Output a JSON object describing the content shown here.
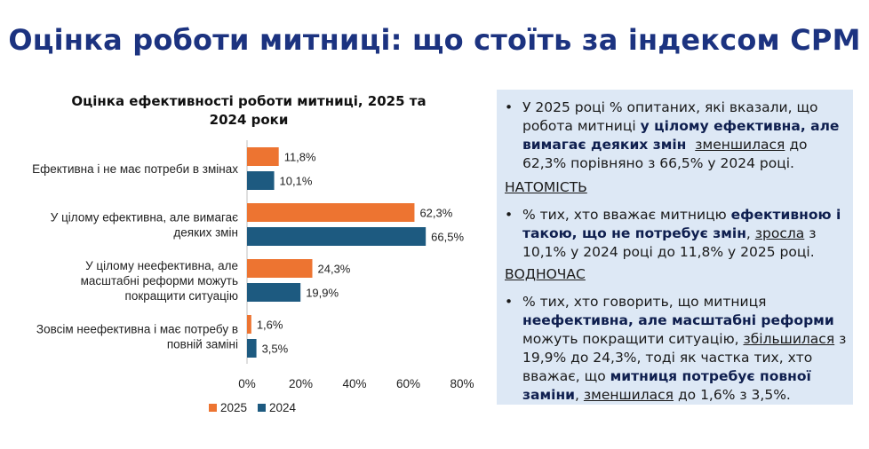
{
  "page_title": "Оцінка роботи митниці: що стоїть за індексом CPM",
  "chart_data": {
    "type": "bar",
    "orientation": "horizontal",
    "title": "Оцінка ефективності роботи митниці, 2025 та 2024 роки",
    "categories": [
      "Ефективна і не має потреби в змінах",
      "У цілому ефективна, але вимагає деяких змін",
      "У цілому неефективна, але масштабні реформи можуть покращити ситуацію",
      "Зовсім неефективна і має потребу в повній заміні"
    ],
    "category_lines": [
      [
        "Ефективна і не має потреби в змінах"
      ],
      [
        "У цілому ефективна, але вимагає",
        "деяких змін"
      ],
      [
        "У цілому неефективна, але",
        "масштабні реформи можуть",
        "покращити ситуацію"
      ],
      [
        "Зовсім неефективна і має потребу в",
        "повній заміні"
      ]
    ],
    "series": [
      {
        "name": "2025",
        "color": "#ed7431",
        "values": [
          11.8,
          62.3,
          24.3,
          1.6
        ],
        "labels": [
          "11,8%",
          "62,3%",
          "24,3%",
          "1,6%"
        ]
      },
      {
        "name": "2024",
        "color": "#1d5a80",
        "values": [
          10.1,
          66.5,
          19.9,
          3.5
        ],
        "labels": [
          "10,1%",
          "66,5%",
          "19,9%",
          "3,5%"
        ]
      }
    ],
    "xlim": [
      0,
      80
    ],
    "xticks": [
      0,
      20,
      40,
      60,
      80
    ],
    "xtick_labels": [
      "0%",
      "20%",
      "40%",
      "60%",
      "80%"
    ],
    "legend_position": "bottom",
    "grid": false
  },
  "sidebar": {
    "bullet": "•",
    "p1": {
      "t1": "У 2025 році % опитаних, які вказали, що робота митниці ",
      "b1": "у цілому ефективна, але вимагає деяких змін",
      "t2": "  ",
      "u1": "зменшилася",
      "t3": " до 62,3% порівняно з 66,5% у 2024 році."
    },
    "h1": "НАТОМІСТЬ",
    "p2": {
      "t1": "% тих, хто вважає митницю ",
      "b1": "ефективною і такою, що не потребує змін",
      "t2": ", ",
      "u1": "зросла",
      "t3": " з 10,1% у 2024 році до 11,8% у 2025 році."
    },
    "h2": "ВОДНОЧАС",
    "p3": {
      "t1": "% тих, хто говорить, що митниця ",
      "b1": "неефективна, але масштабні реформи",
      "t2": " можуть покращити ситуацію, ",
      "u1": "збільшилася",
      "t3": " з 19,9% до 24,3%, тоді як частка тих, хто вважає, що ",
      "b2": "митниця потребує повної заміни",
      "t4": ", ",
      "u2": "зменшилася",
      "t5": " до 1,6% з 3,5%."
    }
  }
}
